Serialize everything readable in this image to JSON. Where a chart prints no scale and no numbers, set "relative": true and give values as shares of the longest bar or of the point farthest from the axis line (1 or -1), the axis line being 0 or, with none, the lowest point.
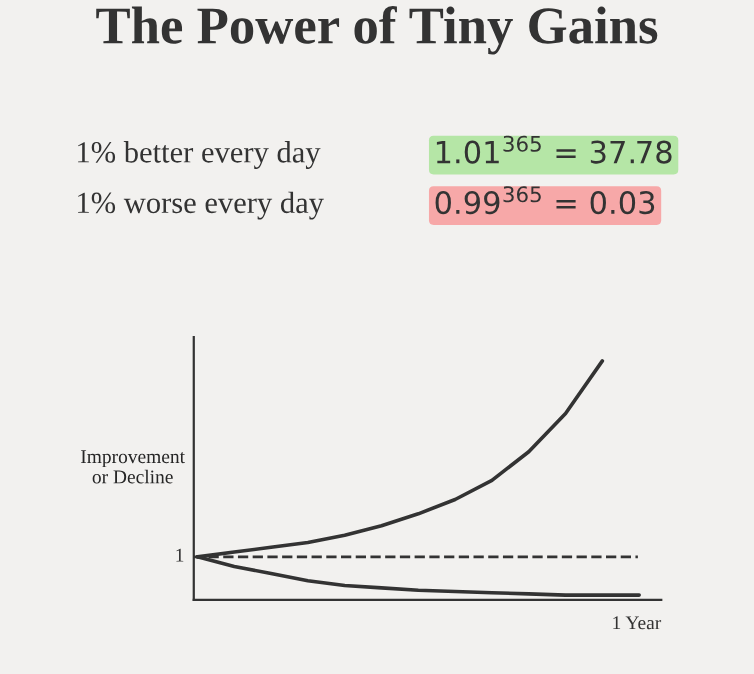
{
  "chart_data": {
    "type": "line",
    "title": "The Power of Tiny Gains",
    "annotations": [
      "1% better every day",
      "1.01$^{365}$ = 37.78",
      "1% worse every day",
      "0.99$^{365}$ = 0.03",
      "1",
      "1 Year"
    ],
    "ylabel": "Improvement\nor Decline",
    "relative": true,
    "categories": [
      null,
      null,
      null,
      null,
      null,
      null,
      null,
      null,
      null,
      null,
      null,
      null,
      null
    ],
    "series": [
      {
        "color": "#333333",
        "values": [
          0.18,
          0.2,
          0.22,
          0.24,
          0.27,
          0.31,
          0.36,
          0.42,
          0.5,
          0.62,
          0.78,
          1.0,
          null
        ]
      },
      {
        "color": "#333333",
        "values": [
          0.18,
          0.14,
          0.11,
          0.08,
          0.06,
          0.05,
          0.04,
          0.035,
          0.03,
          0.025,
          0.02,
          0.02,
          0.02
        ]
      }
    ],
    "ref_lines": [
      {
        "axis": "y",
        "value": 0.18,
        "line_style": "dashed",
        "color": "#333333"
      }
    ],
    "grid": false,
    "legend": false,
    "marker": "none",
    "line_style": "solid"
  }
}
